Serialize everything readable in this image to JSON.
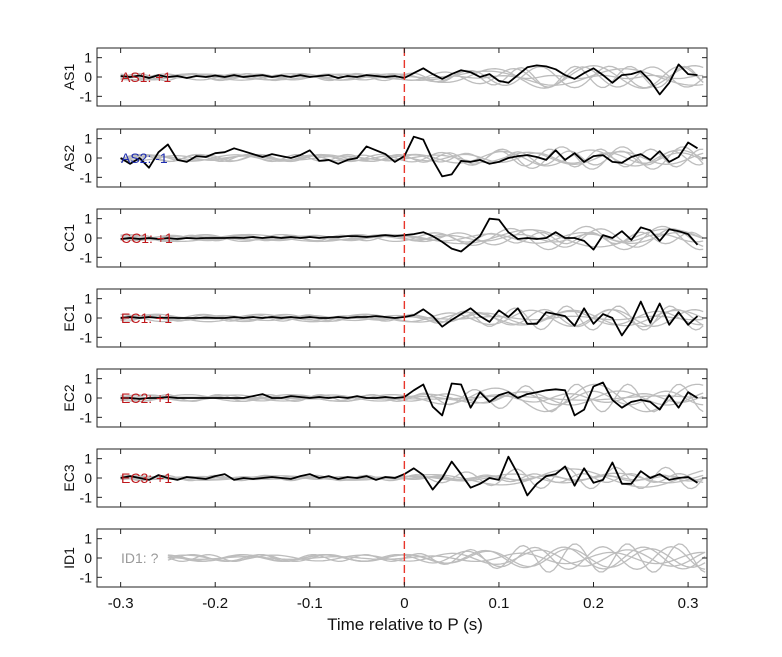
{
  "chart_data": {
    "type": "line",
    "title": "",
    "xlabel": "Time relative to P (s)",
    "xlim": [
      -0.325,
      0.32
    ],
    "ylim": [
      -1.5,
      1.5
    ],
    "xticks": [
      -0.3,
      -0.2,
      -0.1,
      0,
      0.1,
      0.2,
      0.3
    ],
    "xtick_labels": [
      "-0.3",
      "-0.2",
      "-0.1",
      "0",
      "0.1",
      "0.2",
      "0.3"
    ],
    "yticks": [
      -1,
      0,
      1
    ],
    "ytick_labels": [
      "-1",
      "0",
      "1"
    ],
    "pick_time": 0,
    "pick_line_color": "#e8362b",
    "main_trace_color": "#000000",
    "background_trace_color": "#bdbdbd",
    "panels": [
      {
        "ylabel": "AS1",
        "annotation": "AS1: +1",
        "annotation_color": "#c0181c",
        "trace": {
          "x": [
            -0.3,
            -0.29,
            -0.28,
            -0.27,
            -0.26,
            -0.25,
            -0.24,
            -0.23,
            -0.22,
            -0.21,
            -0.2,
            -0.19,
            -0.18,
            -0.17,
            -0.16,
            -0.15,
            -0.14,
            -0.13,
            -0.12,
            -0.11,
            -0.1,
            -0.09,
            -0.08,
            -0.07,
            -0.06,
            -0.05,
            -0.04,
            -0.03,
            -0.02,
            -0.01,
            0,
            0.01,
            0.02,
            0.03,
            0.04,
            0.05,
            0.06,
            0.07,
            0.08,
            0.09,
            0.1,
            0.11,
            0.12,
            0.13,
            0.14,
            0.15,
            0.16,
            0.17,
            0.18,
            0.19,
            0.2,
            0.21,
            0.22,
            0.23,
            0.24,
            0.25,
            0.26,
            0.27,
            0.28,
            0.29,
            0.3,
            0.31
          ],
          "y": [
            0.05,
            0.0,
            0.08,
            -0.05,
            0.1,
            0.0,
            0.05,
            -0.05,
            0.05,
            0.0,
            0.08,
            0.0,
            0.1,
            0.0,
            0.05,
            0.1,
            0.0,
            0.08,
            0.0,
            0.1,
            0.0,
            0.05,
            0.1,
            -0.05,
            0.05,
            0.0,
            0.1,
            0.05,
            0.0,
            0.05,
            -0.05,
            0.2,
            0.45,
            0.15,
            -0.1,
            0.15,
            0.35,
            0.25,
            0.0,
            0.15,
            -0.2,
            -0.3,
            0.1,
            0.5,
            0.6,
            0.55,
            0.4,
            0.1,
            -0.1,
            0.2,
            0.45,
            0.1,
            -0.3,
            0.1,
            0.15,
            0.3,
            -0.2,
            -0.9,
            -0.3,
            0.65,
            0.15,
            0.1
          ]
        },
        "background_trace_count": 6
      },
      {
        "ylabel": "AS2",
        "annotation": "AS2: -1",
        "annotation_color": "#1d2cb0",
        "trace": {
          "x": [
            -0.3,
            -0.29,
            -0.28,
            -0.27,
            -0.26,
            -0.25,
            -0.24,
            -0.23,
            -0.22,
            -0.21,
            -0.2,
            -0.19,
            -0.18,
            -0.17,
            -0.16,
            -0.15,
            -0.14,
            -0.13,
            -0.12,
            -0.11,
            -0.1,
            -0.09,
            -0.08,
            -0.07,
            -0.06,
            -0.05,
            -0.04,
            -0.03,
            -0.02,
            -0.01,
            0,
            0.01,
            0.02,
            0.03,
            0.04,
            0.05,
            0.06,
            0.07,
            0.08,
            0.09,
            0.1,
            0.11,
            0.12,
            0.13,
            0.14,
            0.15,
            0.16,
            0.17,
            0.18,
            0.19,
            0.2,
            0.21,
            0.22,
            0.23,
            0.24,
            0.25,
            0.26,
            0.27,
            0.28,
            0.29,
            0.3,
            0.31
          ],
          "y": [
            0.0,
            -0.3,
            0.0,
            -0.5,
            0.3,
            0.7,
            -0.1,
            -0.2,
            0.1,
            0.05,
            0.25,
            0.3,
            0.5,
            0.35,
            0.2,
            0.05,
            0.2,
            0.1,
            0.0,
            0.15,
            0.4,
            -0.15,
            -0.1,
            -0.3,
            -0.1,
            0.0,
            0.6,
            0.4,
            0.2,
            -0.2,
            0.1,
            1.1,
            0.95,
            -0.1,
            -0.95,
            -0.85,
            -0.15,
            -0.2,
            -0.1,
            -0.3,
            -0.2,
            0.0,
            0.1,
            0.15,
            0.05,
            -0.1,
            0.4,
            -0.1,
            0.25,
            -0.2,
            0.1,
            0.15,
            -0.2,
            -0.25,
            0.05,
            0.2,
            -0.1,
            0.35,
            -0.2,
            0.05,
            0.8,
            0.5
          ]
        },
        "background_trace_count": 6
      },
      {
        "ylabel": "CC1",
        "annotation": "CC1: +1",
        "annotation_color": "#c0181c",
        "trace": {
          "x": [
            -0.3,
            -0.29,
            -0.28,
            -0.27,
            -0.26,
            -0.25,
            -0.24,
            -0.23,
            -0.22,
            -0.21,
            -0.2,
            -0.19,
            -0.18,
            -0.17,
            -0.16,
            -0.15,
            -0.14,
            -0.13,
            -0.12,
            -0.11,
            -0.1,
            -0.09,
            -0.08,
            -0.07,
            -0.06,
            -0.05,
            -0.04,
            -0.03,
            -0.02,
            -0.01,
            0,
            0.01,
            0.02,
            0.03,
            0.04,
            0.05,
            0.06,
            0.07,
            0.08,
            0.09,
            0.1,
            0.11,
            0.12,
            0.13,
            0.14,
            0.15,
            0.16,
            0.17,
            0.18,
            0.19,
            0.2,
            0.21,
            0.22,
            0.23,
            0.24,
            0.25,
            0.26,
            0.27,
            0.28,
            0.29,
            0.3,
            0.31
          ],
          "y": [
            -0.05,
            0.0,
            -0.05,
            0.0,
            -0.05,
            0.0,
            -0.05,
            0.0,
            -0.02,
            0.0,
            0.0,
            0.0,
            0.02,
            0.0,
            0.05,
            0.0,
            0.05,
            0.0,
            0.05,
            0.0,
            0.05,
            0.0,
            0.05,
            0.05,
            0.1,
            0.1,
            0.05,
            0.1,
            0.15,
            0.1,
            0.15,
            0.2,
            0.3,
            0.1,
            -0.2,
            -0.55,
            -0.7,
            -0.3,
            0.1,
            1.0,
            0.95,
            0.3,
            -0.05,
            0.0,
            -0.05,
            0.0,
            0.3,
            0.0,
            0.0,
            -0.15,
            -0.6,
            0.15,
            0.0,
            0.35,
            -0.1,
            0.55,
            0.4,
            -0.15,
            0.45,
            0.35,
            0.2,
            -0.35
          ]
        },
        "background_trace_count": 6
      },
      {
        "ylabel": "EC1",
        "annotation": "EC1: +1",
        "annotation_color": "#c0181c",
        "trace": {
          "x": [
            -0.3,
            -0.29,
            -0.28,
            -0.27,
            -0.26,
            -0.25,
            -0.24,
            -0.23,
            -0.22,
            -0.21,
            -0.2,
            -0.19,
            -0.18,
            -0.17,
            -0.16,
            -0.15,
            -0.14,
            -0.13,
            -0.12,
            -0.11,
            -0.1,
            -0.09,
            -0.08,
            -0.07,
            -0.06,
            -0.05,
            -0.04,
            -0.03,
            -0.02,
            -0.01,
            0,
            0.01,
            0.02,
            0.03,
            0.04,
            0.05,
            0.06,
            0.07,
            0.08,
            0.09,
            0.1,
            0.11,
            0.12,
            0.13,
            0.14,
            0.15,
            0.16,
            0.17,
            0.18,
            0.19,
            0.2,
            0.21,
            0.22,
            0.23,
            0.24,
            0.25,
            0.26,
            0.27,
            0.28,
            0.29,
            0.3,
            0.31
          ],
          "y": [
            0.0,
            0.05,
            0.0,
            0.05,
            0.0,
            0.02,
            0.0,
            0.0,
            0.0,
            0.02,
            0.0,
            0.0,
            0.05,
            0.0,
            0.05,
            0.0,
            0.05,
            0.0,
            0.05,
            0.0,
            0.05,
            0.0,
            0.0,
            0.05,
            0.0,
            0.05,
            0.05,
            0.1,
            0.05,
            0.0,
            0.05,
            0.15,
            0.45,
            0.1,
            -0.45,
            -0.1,
            0.2,
            0.5,
            0.1,
            -0.2,
            0.4,
            0.05,
            0.5,
            -0.3,
            -0.3,
            0.3,
            0.2,
            0.1,
            -0.4,
            0.5,
            -0.3,
            0.2,
            0.0,
            -0.9,
            -0.2,
            0.85,
            -0.25,
            0.75,
            -0.35,
            0.3,
            -0.35,
            0.1
          ]
        },
        "background_trace_count": 6
      },
      {
        "ylabel": "EC2",
        "annotation": "EC2: +1",
        "annotation_color": "#c0181c",
        "trace": {
          "x": [
            -0.3,
            -0.29,
            -0.28,
            -0.27,
            -0.26,
            -0.25,
            -0.24,
            -0.23,
            -0.22,
            -0.21,
            -0.2,
            -0.19,
            -0.18,
            -0.17,
            -0.16,
            -0.15,
            -0.14,
            -0.13,
            -0.12,
            -0.11,
            -0.1,
            -0.09,
            -0.08,
            -0.07,
            -0.06,
            -0.05,
            -0.04,
            -0.03,
            -0.02,
            -0.01,
            0,
            0.01,
            0.02,
            0.03,
            0.04,
            0.05,
            0.06,
            0.07,
            0.08,
            0.09,
            0.1,
            0.11,
            0.12,
            0.13,
            0.14,
            0.15,
            0.16,
            0.17,
            0.18,
            0.19,
            0.2,
            0.21,
            0.22,
            0.23,
            0.24,
            0.25,
            0.26,
            0.27,
            0.28,
            0.29,
            0.3,
            0.31
          ],
          "y": [
            0.0,
            0.0,
            -0.05,
            0.0,
            0.0,
            0.05,
            0.0,
            0.0,
            0.0,
            0.0,
            0.0,
            0.0,
            0.0,
            0.0,
            0.1,
            0.2,
            0.0,
            0.0,
            0.1,
            0.05,
            0.0,
            0.05,
            0.0,
            0.05,
            0.0,
            0.1,
            0.0,
            0.0,
            0.05,
            0.0,
            0.05,
            0.4,
            0.7,
            -0.45,
            -0.9,
            0.75,
            0.7,
            -0.5,
            0.3,
            -0.2,
            0.15,
            0.3,
            0.0,
            0.2,
            0.3,
            0.4,
            0.45,
            0.4,
            -0.9,
            -0.6,
            0.6,
            0.8,
            -0.1,
            -0.5,
            -0.2,
            -0.1,
            -0.2,
            -0.6,
            0.15,
            -0.5,
            0.3,
            0.0
          ]
        },
        "background_trace_count": 6
      },
      {
        "ylabel": "EC3",
        "annotation": "EC3: +1",
        "annotation_color": "#c0181c",
        "trace": {
          "x": [
            -0.3,
            -0.29,
            -0.28,
            -0.27,
            -0.26,
            -0.25,
            -0.24,
            -0.23,
            -0.22,
            -0.21,
            -0.2,
            -0.19,
            -0.18,
            -0.17,
            -0.16,
            -0.15,
            -0.14,
            -0.13,
            -0.12,
            -0.11,
            -0.1,
            -0.09,
            -0.08,
            -0.07,
            -0.06,
            -0.05,
            -0.04,
            -0.03,
            -0.02,
            -0.01,
            0,
            0.01,
            0.02,
            0.03,
            0.04,
            0.05,
            0.06,
            0.07,
            0.08,
            0.09,
            0.1,
            0.11,
            0.12,
            0.13,
            0.14,
            0.15,
            0.16,
            0.17,
            0.18,
            0.19,
            0.2,
            0.21,
            0.22,
            0.23,
            0.24,
            0.25,
            0.26,
            0.27,
            0.28,
            0.29,
            0.3,
            0.31
          ],
          "y": [
            0.0,
            0.1,
            0.0,
            -0.1,
            0.15,
            0.0,
            -0.1,
            0.05,
            0.0,
            -0.05,
            0.1,
            0.2,
            -0.1,
            0.0,
            -0.05,
            0.0,
            0.05,
            0.0,
            -0.05,
            0.1,
            0.2,
            0.0,
            0.1,
            -0.05,
            0.05,
            0.0,
            0.1,
            -0.1,
            0.05,
            0.0,
            0.2,
            0.5,
            0.15,
            -0.6,
            0.0,
            0.85,
            0.2,
            -0.5,
            -0.3,
            0.0,
            -0.1,
            1.1,
            0.2,
            -0.9,
            -0.3,
            0.1,
            0.2,
            0.6,
            -0.4,
            0.5,
            -0.25,
            -0.1,
            0.8,
            -0.3,
            -0.3,
            0.35,
            0.0,
            0.2,
            -0.1,
            0.0,
            0.05,
            -0.25
          ]
        },
        "background_trace_count": 6
      },
      {
        "ylabel": "ID1",
        "annotation": "ID1: ?",
        "annotation_color": "#9a9a9a",
        "trace": null,
        "background_trace_count": 6
      }
    ]
  }
}
